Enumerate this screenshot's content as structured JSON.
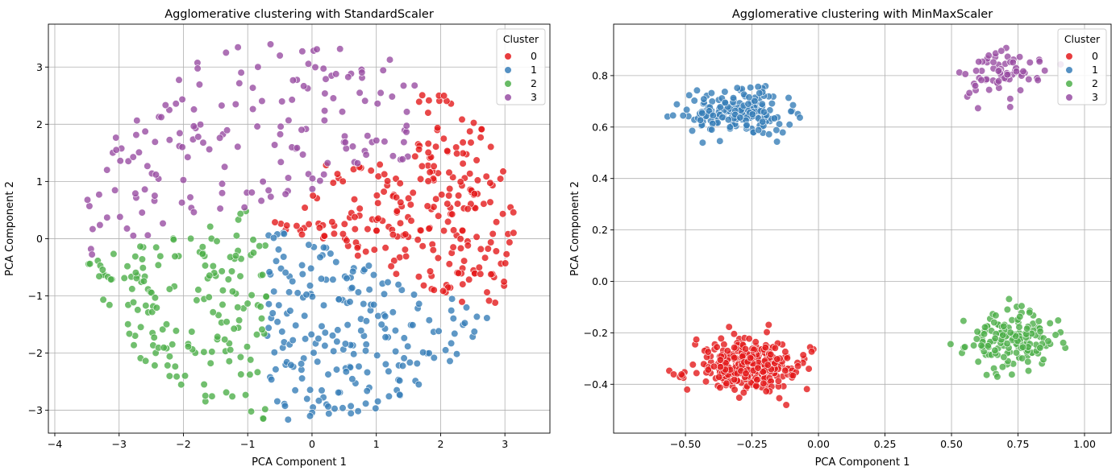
{
  "colors": {
    "0": "#e41a1c",
    "1": "#377eb8",
    "2": "#4daf4a",
    "3": "#984ea3"
  },
  "chart_data": [
    {
      "type": "scatter",
      "title": "Agglomerative clustering with StandardScaler",
      "xlabel": "PCA Component 1",
      "ylabel": "PCA Component 2",
      "xlim": [
        -4.1,
        3.7
      ],
      "ylim": [
        -3.4,
        3.75
      ],
      "xticks": [
        -4,
        -3,
        -2,
        -1,
        0,
        1,
        2,
        3
      ],
      "yticks": [
        -3,
        -2,
        -1,
        0,
        1,
        2,
        3
      ],
      "xtick_labels": [
        "−4",
        "−3",
        "−2",
        "−1",
        "0",
        "1",
        "2",
        "3"
      ],
      "ytick_labels": [
        "−3",
        "−2",
        "−1",
        "0",
        "1",
        "2",
        "3"
      ],
      "grid": true,
      "legend": {
        "title": "Cluster",
        "placement": "top-right",
        "entries": [
          "0",
          "1",
          "2",
          "3"
        ]
      },
      "series": [
        {
          "name": "0",
          "generator": {
            "kind": "region",
            "count": 250,
            "x": [
              -1.3,
              3.3
            ],
            "y": [
              -1.4,
              2.2
            ],
            "line": [
              -1,
              0.05,
              0.8,
              2.5
            ],
            "side": "above_line_below_arc",
            "seed": 11
          }
        },
        {
          "name": "1",
          "generator": {
            "kind": "region",
            "count": 210,
            "x": [
              -1.8,
              3.4
            ],
            "y": [
              -3.1,
              0.5
            ],
            "seed": 12
          }
        },
        {
          "name": "2",
          "generator": {
            "kind": "region",
            "count": 170,
            "x": [
              -3.7,
              -0.6
            ],
            "y": [
              -2.1,
              0.7
            ],
            "seed": 13
          }
        },
        {
          "name": "3",
          "generator": {
            "kind": "region",
            "count": 170,
            "x": [
              -3.2,
              1.5
            ],
            "y": [
              0.7,
              3.45
            ],
            "seed": 14
          }
        }
      ],
      "note_values": "approximate"
    },
    {
      "type": "scatter",
      "title": "Agglomerative clustering with MinMaxScaler",
      "xlabel": "PCA Component 1",
      "ylabel": "PCA Component 2",
      "xlim": [
        -0.77,
        1.1
      ],
      "ylim": [
        -0.59,
        1.0
      ],
      "xticks": [
        -0.5,
        -0.25,
        0.0,
        0.25,
        0.5,
        0.75,
        1.0
      ],
      "yticks": [
        -0.4,
        -0.2,
        0.0,
        0.2,
        0.4,
        0.6,
        0.8
      ],
      "xtick_labels": [
        "−0.50",
        "−0.25",
        "0.00",
        "0.25",
        "0.50",
        "0.75",
        "1.00"
      ],
      "ytick_labels": [
        "−0.4",
        "−0.2",
        "0.0",
        "0.2",
        "0.4",
        "0.6",
        "0.8"
      ],
      "grid": true,
      "legend": {
        "title": "Cluster",
        "placement": "top-right",
        "entries": [
          "0",
          "1",
          "2",
          "3"
        ]
      },
      "series": [
        {
          "name": "0",
          "generator": {
            "kind": "blob",
            "count": 340,
            "cx": -0.26,
            "cy": -0.33,
            "sx": 0.13,
            "sy": 0.065,
            "seed": 21
          }
        },
        {
          "name": "1",
          "generator": {
            "kind": "blob",
            "count": 190,
            "cx": -0.3,
            "cy": 0.655,
            "sx": 0.12,
            "sy": 0.055,
            "seed": 22
          }
        },
        {
          "name": "2",
          "generator": {
            "kind": "blob",
            "count": 160,
            "cx": 0.72,
            "cy": -0.23,
            "sx": 0.11,
            "sy": 0.07,
            "seed": 23
          }
        },
        {
          "name": "3",
          "generator": {
            "kind": "blob",
            "count": 70,
            "cx": 0.68,
            "cy": 0.8,
            "sx": 0.1,
            "sy": 0.07,
            "seed": 24
          }
        }
      ],
      "note_values": "approximate"
    }
  ]
}
